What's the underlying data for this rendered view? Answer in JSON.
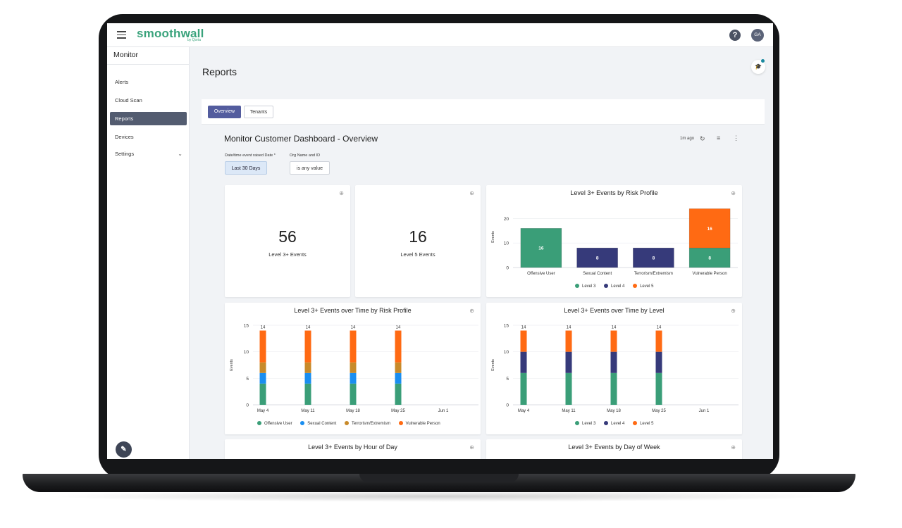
{
  "app": {
    "brand": "smoothwall",
    "brand_sub": "by Qoria",
    "avatar_initials": "GA",
    "help_glyph": "?"
  },
  "sidebar": {
    "title": "Monitor",
    "items": [
      {
        "label": "Alerts",
        "active": false
      },
      {
        "label": "Cloud Scan",
        "active": false
      },
      {
        "label": "Reports",
        "active": true
      },
      {
        "label": "Devices",
        "active": false
      },
      {
        "label": "Settings",
        "active": false
      }
    ]
  },
  "page": {
    "title": "Reports"
  },
  "tabs": [
    {
      "label": "Overview",
      "active": true
    },
    {
      "label": "Tenants",
      "active": false
    }
  ],
  "dashboard": {
    "title": "Monitor Customer Dashboard - Overview",
    "updated": "1m ago",
    "filters": [
      {
        "label": "Date/time event raised Date *",
        "value": "Last 30 Days"
      },
      {
        "label": "Org Name and ID",
        "value": "is any value"
      }
    ]
  },
  "kpis": [
    {
      "value": "56",
      "label": "Level 3+ Events"
    },
    {
      "value": "16",
      "label": "Level 5 Events"
    }
  ],
  "colors": {
    "level3": "#3a9e78",
    "level4": "#363a7a",
    "level5": "#ff6a13",
    "offensive_user": "#3a9e78",
    "sexual_content": "#1a8ef0",
    "terrorism": "#c88a2a",
    "vulnerable": "#ff6a13",
    "accent": "#535c9e",
    "brand": "#3aa37c"
  },
  "chart_data": [
    {
      "type": "bar",
      "title": "Level 3+ Events by Risk Profile",
      "ylabel": "Events",
      "ylim": [
        0,
        25
      ],
      "yticks": [
        0,
        10,
        20
      ],
      "categories": [
        "Offensive User",
        "Sexual Content",
        "Terrorism/Extremism",
        "Vulnerable Person"
      ],
      "series": [
        {
          "name": "Level 3",
          "values": [
            16,
            0,
            0,
            8
          ]
        },
        {
          "name": "Level 4",
          "values": [
            0,
            8,
            8,
            0
          ]
        },
        {
          "name": "Level 5",
          "values": [
            0,
            0,
            0,
            16
          ]
        }
      ],
      "stacked": true,
      "legend": "bottom"
    },
    {
      "type": "bar",
      "title": "Level 3+ Events over Time by Risk Profile",
      "ylabel": "Events",
      "ylim": [
        0,
        15
      ],
      "yticks": [
        0,
        5,
        10,
        15
      ],
      "categories": [
        "May 4",
        "May 11",
        "May 18",
        "May 25",
        "Jun 1"
      ],
      "series": [
        {
          "name": "Offensive User",
          "values": [
            4,
            4,
            4,
            4,
            0
          ]
        },
        {
          "name": "Sexual Content",
          "values": [
            2,
            2,
            2,
            2,
            0
          ]
        },
        {
          "name": "Terrorism/Extremism",
          "values": [
            2,
            2,
            2,
            2,
            0
          ]
        },
        {
          "name": "Vulnerable Person",
          "values": [
            6,
            6,
            6,
            6,
            0
          ]
        }
      ],
      "totals": [
        14,
        14,
        14,
        14
      ],
      "stacked": true,
      "legend": "bottom"
    },
    {
      "type": "bar",
      "title": "Level 3+ Events over Time by Level",
      "ylabel": "Events",
      "ylim": [
        0,
        15
      ],
      "yticks": [
        0,
        5,
        10,
        15
      ],
      "categories": [
        "May 4",
        "May 11",
        "May 18",
        "May 25",
        "Jun 1"
      ],
      "series": [
        {
          "name": "Level 3",
          "values": [
            6,
            6,
            6,
            6,
            0
          ]
        },
        {
          "name": "Level 4",
          "values": [
            4,
            4,
            4,
            4,
            0
          ]
        },
        {
          "name": "Level 5",
          "values": [
            4,
            4,
            4,
            4,
            0
          ]
        }
      ],
      "totals": [
        14,
        14,
        14,
        14
      ],
      "stacked": true,
      "legend": "bottom"
    }
  ],
  "bottom_cards": [
    {
      "title": "Level 3+ Events by Hour of Day"
    },
    {
      "title": "Level 3+ Events by Day of Week"
    }
  ]
}
